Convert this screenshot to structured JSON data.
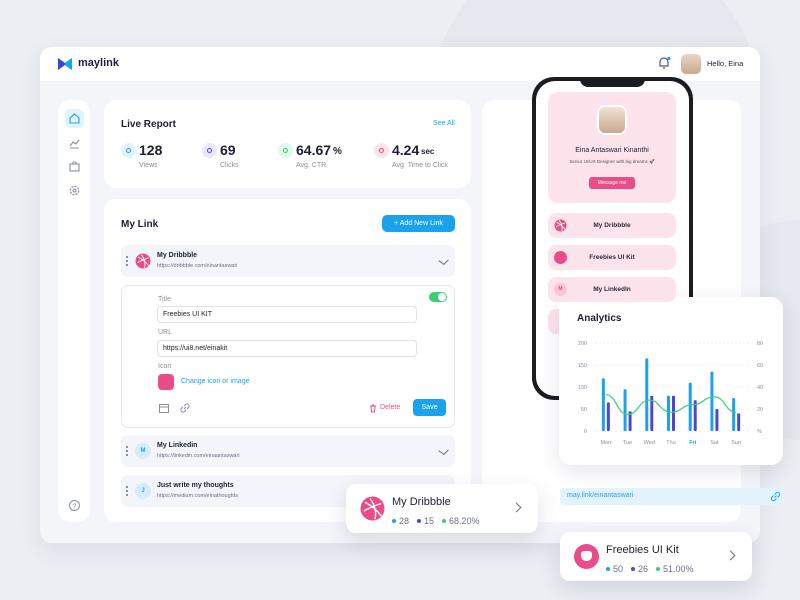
{
  "header": {
    "logo": "maylink",
    "greeting": "Hello, Eina"
  },
  "live_report": {
    "title": "Live Report",
    "see_all": "See All",
    "stats": [
      {
        "value": "128",
        "label": "Views"
      },
      {
        "value": "69",
        "label": "Clicks"
      },
      {
        "value": "64.67",
        "unit": "%",
        "label": "Avg. CTR"
      },
      {
        "value": "4.24",
        "unit": "sec",
        "label": "Avg. Time to Click"
      }
    ]
  },
  "my_link": {
    "title": "My Link",
    "add_button": "+ Add New Link",
    "links": [
      {
        "title": "My Dribbble",
        "url": "https://dribbble.com/einantaswari"
      },
      {
        "badge": "M",
        "title": "My Linkedin",
        "url": "https://linkedin.com/einaantaswari"
      },
      {
        "badge": "J",
        "title": "Just write my thoughts",
        "url": "https://medium.com/einathoughts"
      }
    ],
    "editor": {
      "title_label": "Title",
      "title_value": "Freebies UI KIT",
      "url_label": "URL",
      "url_value": "https://ui8.net/einakit",
      "icon_label": "Icon",
      "change_icon": "Change icon or image",
      "delete": "Delete",
      "save": "Save"
    }
  },
  "phone": {
    "name": "Eina Antaswari Kinanthi",
    "bio": "Senior UI/UX Designer with big dreams 🚀",
    "button": "Message me",
    "links": [
      {
        "title": "My Dribbble"
      },
      {
        "title": "Freebies UI Kit"
      },
      {
        "badge": "M",
        "title": "My LinkedIn"
      }
    ]
  },
  "analytics": {
    "title": "Analytics",
    "categories": [
      "Mon",
      "Tue",
      "Wed",
      "Thu",
      "Fri",
      "Sat",
      "Sun"
    ],
    "highlight_index": 4,
    "series": [
      {
        "color": "#1aa3ec",
        "values": [
          120,
          95,
          165,
          80,
          110,
          135,
          75
        ]
      },
      {
        "color": "#4b47d6",
        "values": [
          65,
          45,
          80,
          80,
          70,
          50,
          40
        ]
      },
      {
        "color": "#3ccf6e",
        "axis": "y2",
        "values": [
          33,
          15,
          28,
          17,
          24,
          31,
          17
        ]
      }
    ],
    "ylim": [
      0,
      200
    ],
    "yticks": [
      0,
      50,
      100,
      150,
      200
    ],
    "y2lim": [
      0,
      80
    ],
    "y2ticks": [
      {
        "value": 0,
        "label": "%"
      },
      20,
      40,
      60,
      80
    ]
  },
  "share_url": "may.link/einantaswari",
  "float_cards": [
    {
      "title": "My Dribbble",
      "stats": [
        "28",
        "15",
        "68.20%"
      ]
    },
    {
      "title": "Freebies UI Kit",
      "stats": [
        "50",
        "26",
        "51.00%"
      ]
    }
  ]
}
